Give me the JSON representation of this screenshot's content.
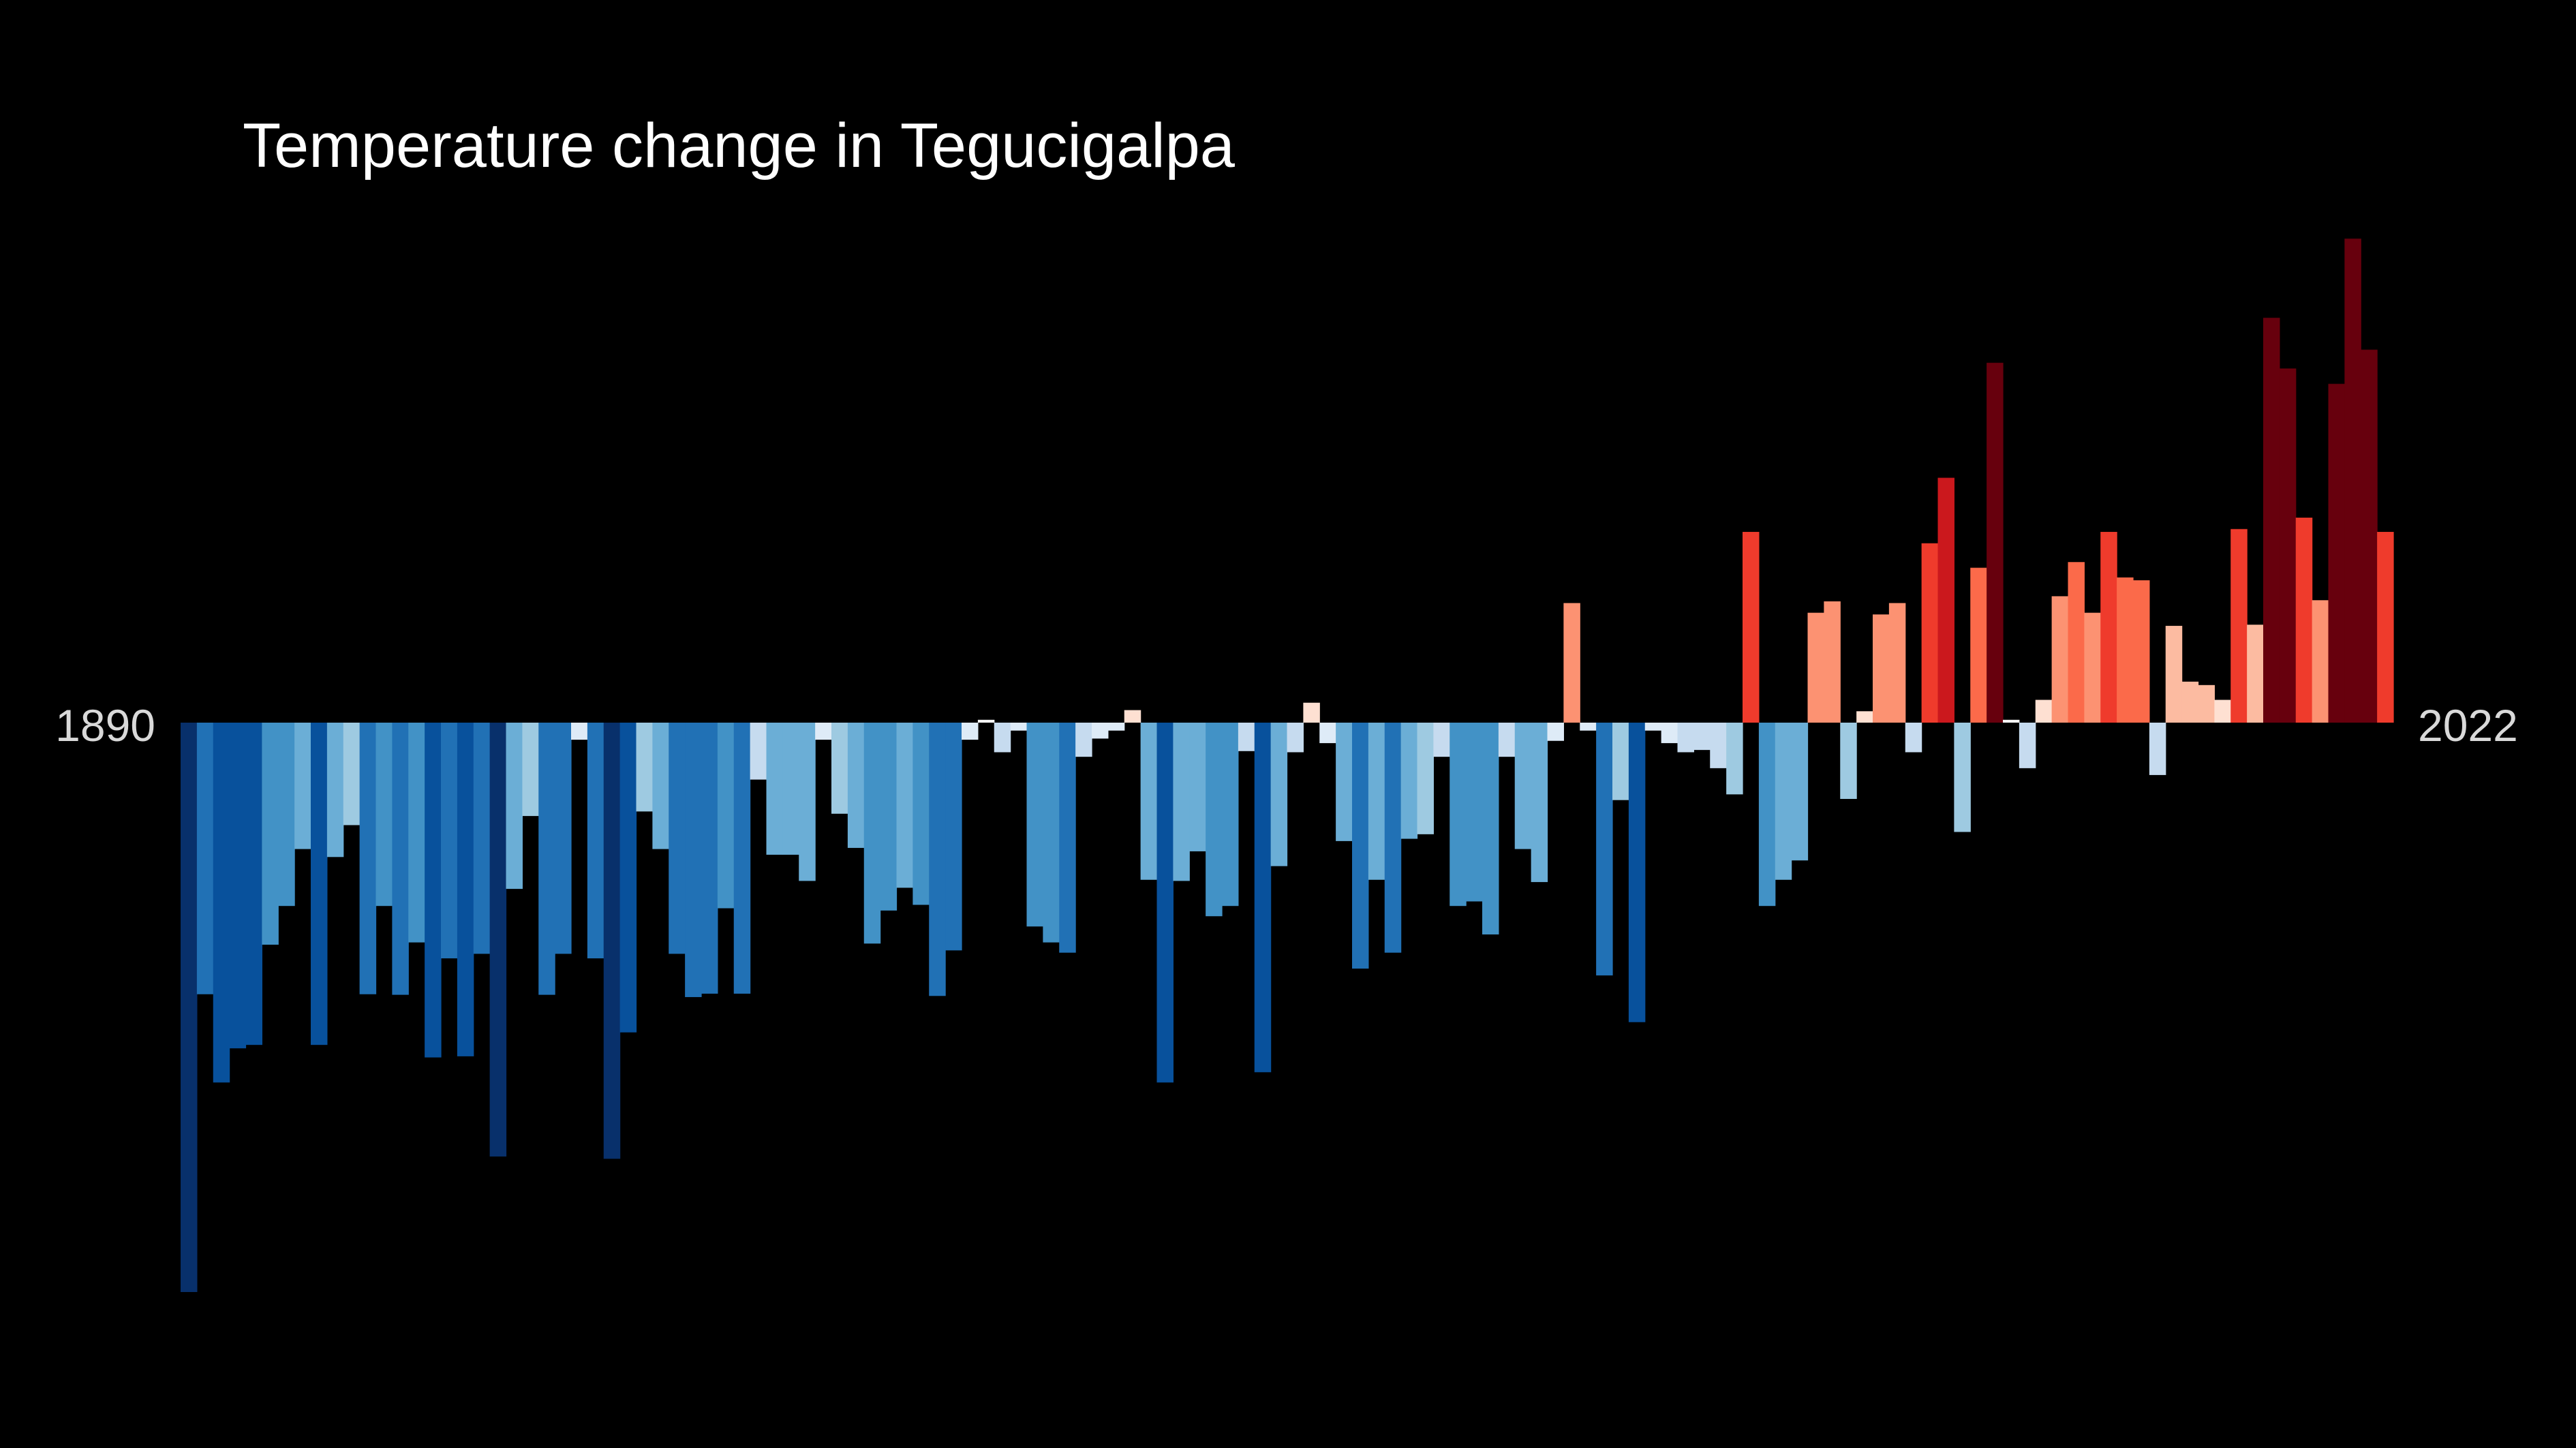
{
  "chart_data": {
    "type": "bar",
    "title": "Temperature change in Tegucigalpa",
    "x_start_label": "1890",
    "x_end_label": "2022",
    "x_range": [
      1890,
      2022
    ],
    "ylim": [
      -1.0,
      0.85
    ],
    "grid": false,
    "legend": "none",
    "values": [
      -1.0,
      -0.477,
      -0.632,
      -0.572,
      -0.566,
      -0.39,
      -0.322,
      -0.222,
      -0.566,
      -0.236,
      -0.18,
      -0.477,
      -0.322,
      -0.478,
      -0.386,
      -0.588,
      -0.414,
      -0.586,
      -0.406,
      -0.762,
      -0.292,
      -0.164,
      -0.478,
      -0.406,
      -0.03,
      -0.414,
      -0.766,
      -0.544,
      -0.156,
      -0.222,
      -0.406,
      -0.482,
      -0.476,
      -0.326,
      -0.476,
      -0.1,
      -0.232,
      -0.232,
      -0.278,
      -0.03,
      -0.16,
      -0.22,
      -0.388,
      -0.33,
      -0.29,
      -0.32,
      -0.48,
      -0.4,
      -0.03,
      0.005,
      -0.052,
      -0.014,
      -0.358,
      -0.386,
      -0.404,
      -0.06,
      -0.028,
      -0.014,
      0.022,
      -0.276,
      -0.632,
      -0.278,
      -0.226,
      -0.34,
      -0.322,
      -0.05,
      -0.614,
      -0.252,
      -0.052,
      0.035,
      -0.036,
      -0.208,
      -0.432,
      -0.276,
      -0.404,
      -0.204,
      -0.196,
      -0.06,
      -0.322,
      -0.314,
      -0.372,
      -0.06,
      -0.222,
      -0.28,
      -0.032,
      0.21,
      -0.014,
      -0.444,
      -0.136,
      -0.526,
      -0.014,
      -0.036,
      -0.052,
      -0.048,
      -0.08,
      -0.126,
      0.335,
      -0.322,
      -0.276,
      -0.242,
      0.193,
      0.213,
      -0.134,
      0.02,
      0.19,
      0.21,
      -0.052,
      0.315,
      0.43,
      -0.192,
      0.272,
      0.632,
      0.005,
      -0.08,
      0.04,
      0.222,
      0.282,
      0.193,
      0.335,
      0.255,
      0.25,
      -0.092,
      0.17,
      0.072,
      0.066,
      0.04,
      0.34,
      0.172,
      0.711,
      0.622,
      0.36,
      0.215,
      0.595,
      0.85,
      0.655,
      0.335
    ]
  }
}
